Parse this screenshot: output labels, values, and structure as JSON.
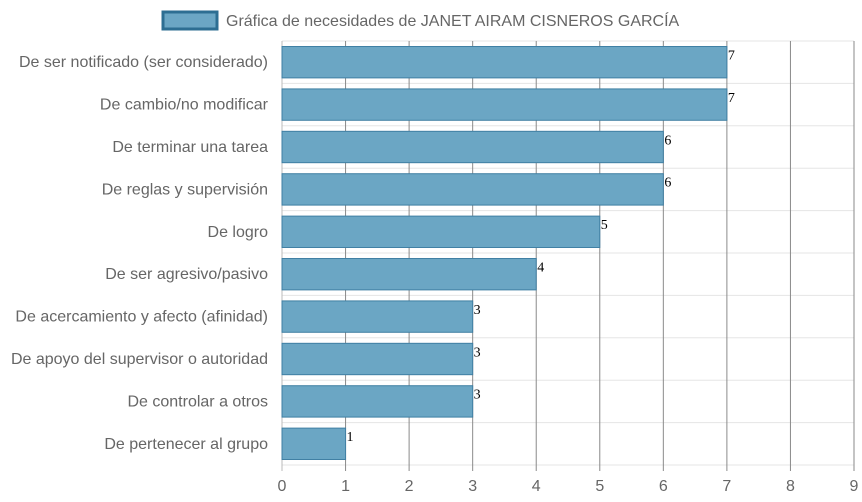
{
  "chart_data": {
    "type": "bar",
    "orientation": "horizontal",
    "categories": [
      "De ser notificado (ser considerado)",
      "De cambio/no modificar",
      "De terminar una tarea",
      "De reglas y supervisión",
      "De logro",
      "De ser agresivo/pasivo",
      "De acercamiento y afecto (afinidad)",
      "De apoyo del supervisor o autoridad",
      "De controlar a otros",
      "De pertenecer al grupo"
    ],
    "series": [
      {
        "name": "Gráfica de necesidades de JANET AIRAM CISNEROS GARCÍA",
        "values": [
          7,
          7,
          6,
          6,
          5,
          4,
          3,
          3,
          3,
          1
        ]
      }
    ],
    "xlim": [
      0,
      9
    ],
    "xticks": [
      "0",
      "1",
      "2",
      "3",
      "4",
      "5",
      "6",
      "7",
      "8",
      "9"
    ],
    "grid": true,
    "legend_position": "top-center",
    "colors": {
      "bar_fill": "#6ba6c4",
      "bar_stroke": "#3f7fa3",
      "legend_fill": "#6ba6c4",
      "legend_stroke": "#2d6e92"
    }
  }
}
